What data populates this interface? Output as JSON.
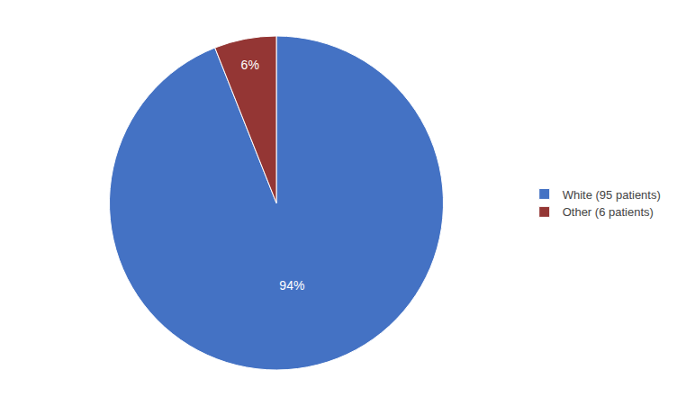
{
  "chart_data": {
    "type": "pie",
    "categories": [
      "White (95 patients)",
      "Other (6 patients)"
    ],
    "values": [
      94,
      6
    ],
    "value_labels": [
      "94%",
      "6%"
    ],
    "colors": [
      "#4472C4",
      "#943634"
    ],
    "data_labels": true,
    "legend": "right"
  }
}
